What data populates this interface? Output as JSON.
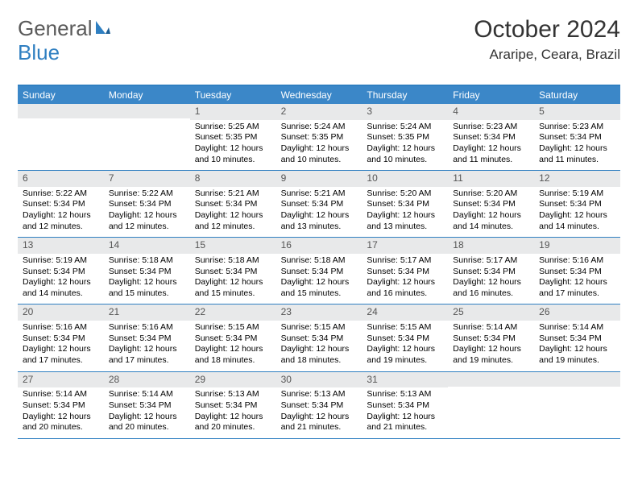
{
  "logo": {
    "text1": "General",
    "text2": "Blue"
  },
  "title": "October 2024",
  "location": "Araripe, Ceara, Brazil",
  "colors": {
    "header_bg": "#3b87c8",
    "header_border": "#2f7fc1",
    "daynum_bg": "#e8e9ea",
    "text": "#000000"
  },
  "day_names": [
    "Sunday",
    "Monday",
    "Tuesday",
    "Wednesday",
    "Thursday",
    "Friday",
    "Saturday"
  ],
  "weeks": [
    [
      {
        "num": "",
        "lines": []
      },
      {
        "num": "",
        "lines": []
      },
      {
        "num": "1",
        "lines": [
          "Sunrise: 5:25 AM",
          "Sunset: 5:35 PM",
          "Daylight: 12 hours and 10 minutes."
        ]
      },
      {
        "num": "2",
        "lines": [
          "Sunrise: 5:24 AM",
          "Sunset: 5:35 PM",
          "Daylight: 12 hours and 10 minutes."
        ]
      },
      {
        "num": "3",
        "lines": [
          "Sunrise: 5:24 AM",
          "Sunset: 5:35 PM",
          "Daylight: 12 hours and 10 minutes."
        ]
      },
      {
        "num": "4",
        "lines": [
          "Sunrise: 5:23 AM",
          "Sunset: 5:34 PM",
          "Daylight: 12 hours and 11 minutes."
        ]
      },
      {
        "num": "5",
        "lines": [
          "Sunrise: 5:23 AM",
          "Sunset: 5:34 PM",
          "Daylight: 12 hours and 11 minutes."
        ]
      }
    ],
    [
      {
        "num": "6",
        "lines": [
          "Sunrise: 5:22 AM",
          "Sunset: 5:34 PM",
          "Daylight: 12 hours and 12 minutes."
        ]
      },
      {
        "num": "7",
        "lines": [
          "Sunrise: 5:22 AM",
          "Sunset: 5:34 PM",
          "Daylight: 12 hours and 12 minutes."
        ]
      },
      {
        "num": "8",
        "lines": [
          "Sunrise: 5:21 AM",
          "Sunset: 5:34 PM",
          "Daylight: 12 hours and 12 minutes."
        ]
      },
      {
        "num": "9",
        "lines": [
          "Sunrise: 5:21 AM",
          "Sunset: 5:34 PM",
          "Daylight: 12 hours and 13 minutes."
        ]
      },
      {
        "num": "10",
        "lines": [
          "Sunrise: 5:20 AM",
          "Sunset: 5:34 PM",
          "Daylight: 12 hours and 13 minutes."
        ]
      },
      {
        "num": "11",
        "lines": [
          "Sunrise: 5:20 AM",
          "Sunset: 5:34 PM",
          "Daylight: 12 hours and 14 minutes."
        ]
      },
      {
        "num": "12",
        "lines": [
          "Sunrise: 5:19 AM",
          "Sunset: 5:34 PM",
          "Daylight: 12 hours and 14 minutes."
        ]
      }
    ],
    [
      {
        "num": "13",
        "lines": [
          "Sunrise: 5:19 AM",
          "Sunset: 5:34 PM",
          "Daylight: 12 hours and 14 minutes."
        ]
      },
      {
        "num": "14",
        "lines": [
          "Sunrise: 5:18 AM",
          "Sunset: 5:34 PM",
          "Daylight: 12 hours and 15 minutes."
        ]
      },
      {
        "num": "15",
        "lines": [
          "Sunrise: 5:18 AM",
          "Sunset: 5:34 PM",
          "Daylight: 12 hours and 15 minutes."
        ]
      },
      {
        "num": "16",
        "lines": [
          "Sunrise: 5:18 AM",
          "Sunset: 5:34 PM",
          "Daylight: 12 hours and 15 minutes."
        ]
      },
      {
        "num": "17",
        "lines": [
          "Sunrise: 5:17 AM",
          "Sunset: 5:34 PM",
          "Daylight: 12 hours and 16 minutes."
        ]
      },
      {
        "num": "18",
        "lines": [
          "Sunrise: 5:17 AM",
          "Sunset: 5:34 PM",
          "Daylight: 12 hours and 16 minutes."
        ]
      },
      {
        "num": "19",
        "lines": [
          "Sunrise: 5:16 AM",
          "Sunset: 5:34 PM",
          "Daylight: 12 hours and 17 minutes."
        ]
      }
    ],
    [
      {
        "num": "20",
        "lines": [
          "Sunrise: 5:16 AM",
          "Sunset: 5:34 PM",
          "Daylight: 12 hours and 17 minutes."
        ]
      },
      {
        "num": "21",
        "lines": [
          "Sunrise: 5:16 AM",
          "Sunset: 5:34 PM",
          "Daylight: 12 hours and 17 minutes."
        ]
      },
      {
        "num": "22",
        "lines": [
          "Sunrise: 5:15 AM",
          "Sunset: 5:34 PM",
          "Daylight: 12 hours and 18 minutes."
        ]
      },
      {
        "num": "23",
        "lines": [
          "Sunrise: 5:15 AM",
          "Sunset: 5:34 PM",
          "Daylight: 12 hours and 18 minutes."
        ]
      },
      {
        "num": "24",
        "lines": [
          "Sunrise: 5:15 AM",
          "Sunset: 5:34 PM",
          "Daylight: 12 hours and 19 minutes."
        ]
      },
      {
        "num": "25",
        "lines": [
          "Sunrise: 5:14 AM",
          "Sunset: 5:34 PM",
          "Daylight: 12 hours and 19 minutes."
        ]
      },
      {
        "num": "26",
        "lines": [
          "Sunrise: 5:14 AM",
          "Sunset: 5:34 PM",
          "Daylight: 12 hours and 19 minutes."
        ]
      }
    ],
    [
      {
        "num": "27",
        "lines": [
          "Sunrise: 5:14 AM",
          "Sunset: 5:34 PM",
          "Daylight: 12 hours and 20 minutes."
        ]
      },
      {
        "num": "28",
        "lines": [
          "Sunrise: 5:14 AM",
          "Sunset: 5:34 PM",
          "Daylight: 12 hours and 20 minutes."
        ]
      },
      {
        "num": "29",
        "lines": [
          "Sunrise: 5:13 AM",
          "Sunset: 5:34 PM",
          "Daylight: 12 hours and 20 minutes."
        ]
      },
      {
        "num": "30",
        "lines": [
          "Sunrise: 5:13 AM",
          "Sunset: 5:34 PM",
          "Daylight: 12 hours and 21 minutes."
        ]
      },
      {
        "num": "31",
        "lines": [
          "Sunrise: 5:13 AM",
          "Sunset: 5:34 PM",
          "Daylight: 12 hours and 21 minutes."
        ]
      },
      {
        "num": "",
        "lines": []
      },
      {
        "num": "",
        "lines": []
      }
    ]
  ]
}
